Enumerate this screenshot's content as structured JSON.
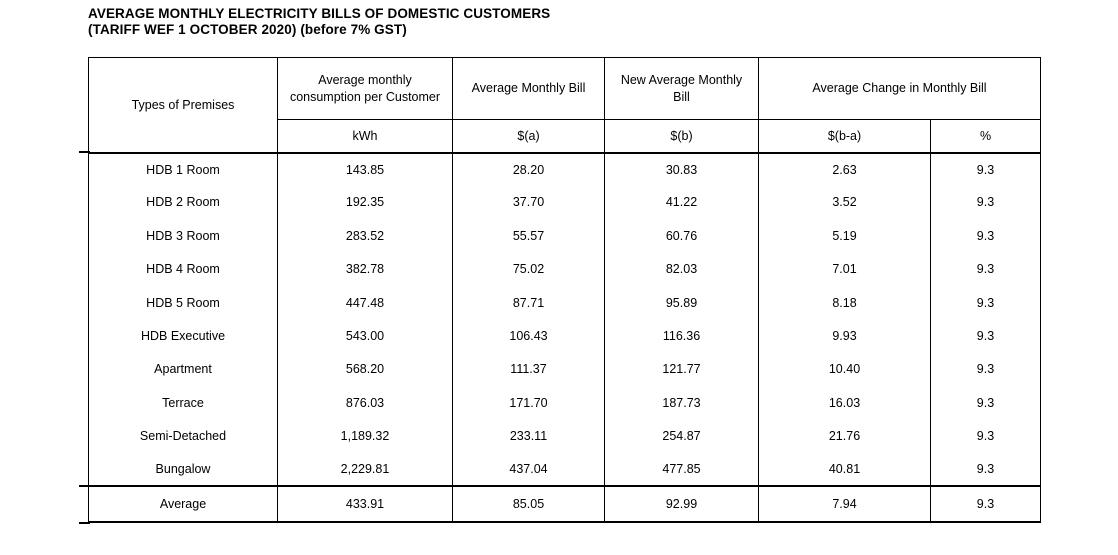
{
  "title": {
    "line1": "AVERAGE MONTHLY ELECTRICITY BILLS OF DOMESTIC CUSTOMERS",
    "line2": "(TARIFF WEF 1 OCTOBER 2020) (before 7% GST)"
  },
  "table": {
    "headers": {
      "premises": "Types of Premises",
      "consumption": "Average monthly consumption per Customer",
      "avg_bill": "Average Monthly Bill",
      "new_avg_bill": "New Average Monthly Bill",
      "avg_change": "Average Change in Monthly Bill"
    },
    "units": {
      "consumption": "kWh",
      "avg_bill": "$(a)",
      "new_avg_bill": "$(b)",
      "change_amount": "$(b-a)",
      "change_percent": "%"
    },
    "rows": [
      [
        "HDB 1 Room",
        "143.85",
        "28.20",
        "30.83",
        "2.63",
        "9.3"
      ],
      [
        "HDB 2 Room",
        "192.35",
        "37.70",
        "41.22",
        "3.52",
        "9.3"
      ],
      [
        "HDB 3 Room",
        "283.52",
        "55.57",
        "60.76",
        "5.19",
        "9.3"
      ],
      [
        "HDB 4 Room",
        "382.78",
        "75.02",
        "82.03",
        "7.01",
        "9.3"
      ],
      [
        "HDB 5 Room",
        "447.48",
        "87.71",
        "95.89",
        "8.18",
        "9.3"
      ],
      [
        "HDB Executive",
        "543.00",
        "106.43",
        "116.36",
        "9.93",
        "9.3"
      ],
      [
        "Apartment",
        "568.20",
        "111.37",
        "121.77",
        "10.40",
        "9.3"
      ],
      [
        "Terrace",
        "876.03",
        "171.70",
        "187.73",
        "16.03",
        "9.3"
      ],
      [
        "Semi-Detached",
        "1,189.32",
        "233.11",
        "254.87",
        "21.76",
        "9.3"
      ],
      [
        "Bungalow",
        "2,229.81",
        "437.04",
        "477.85",
        "40.81",
        "9.3"
      ]
    ],
    "average_row": [
      "Average",
      "433.91",
      "85.05",
      "92.99",
      "7.94",
      "9.3"
    ]
  }
}
